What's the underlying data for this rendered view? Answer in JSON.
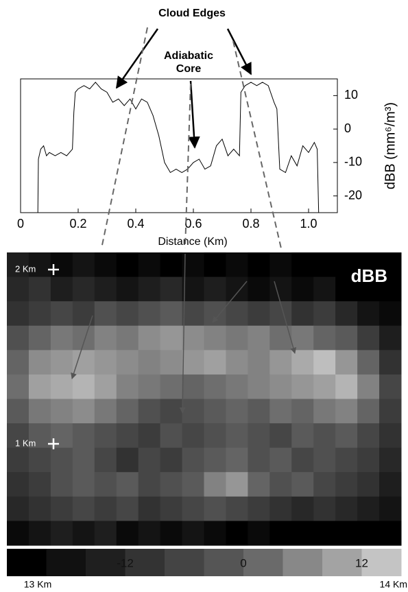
{
  "chart_data": [
    {
      "type": "line",
      "annotations": [
        "Cloud Edges",
        "Adiabatic Core"
      ],
      "xlabel": "Distance (Km)",
      "ylabel": "dBB (mm⁶/m³)",
      "x": [
        0.06,
        0.062,
        0.07,
        0.08,
        0.09,
        0.1,
        0.12,
        0.14,
        0.16,
        0.18,
        0.185,
        0.19,
        0.2,
        0.22,
        0.24,
        0.26,
        0.28,
        0.3,
        0.32,
        0.34,
        0.36,
        0.38,
        0.4,
        0.42,
        0.44,
        0.46,
        0.48,
        0.5,
        0.52,
        0.54,
        0.56,
        0.58,
        0.6,
        0.62,
        0.64,
        0.66,
        0.68,
        0.7,
        0.72,
        0.74,
        0.76,
        0.765,
        0.78,
        0.8,
        0.82,
        0.84,
        0.86,
        0.88,
        0.89,
        0.9,
        0.92,
        0.94,
        0.96,
        0.98,
        1.0,
        1.02,
        1.03,
        1.035
      ],
      "values": [
        -25,
        -9,
        -6,
        -5,
        -8,
        -7,
        -8,
        -7,
        -8,
        -6,
        5,
        11,
        12,
        13,
        12,
        14,
        12,
        11,
        8,
        9,
        7,
        9,
        6,
        9,
        8,
        4,
        -2,
        -10,
        -13,
        -12,
        -13,
        -12,
        -10,
        -9,
        -12,
        -11,
        -5,
        -3,
        -8,
        -6,
        -8,
        11,
        13,
        14,
        13,
        14,
        13,
        8,
        6,
        -12,
        -13,
        -8,
        -11,
        -5,
        -7,
        -4,
        -6,
        -25
      ],
      "color": "#000000",
      "xlim": [
        0,
        1.1
      ],
      "xticks": [
        0,
        0.2,
        0.4,
        0.6,
        0.8,
        {
          "value": 1,
          "label": "1.0"
        }
      ],
      "ylim": [
        -25,
        15
      ],
      "yticks": [
        -20,
        -10,
        0,
        10
      ]
    },
    {
      "type": "heatmap",
      "title": "dBB",
      "xlabels": [
        "13 Km",
        "14 Km"
      ],
      "ylabels": [
        "2 Km",
        "1 Km"
      ],
      "z": [
        [
          -18,
          -20,
          -22,
          -20,
          -22,
          -24,
          -22,
          -24,
          -22,
          -24,
          -22,
          -24,
          -22,
          -24,
          -24,
          -24,
          -24,
          -24
        ],
        [
          -16,
          -14,
          -18,
          -16,
          -18,
          -20,
          -18,
          -16,
          -20,
          -18,
          -20,
          -22,
          -20,
          -22,
          -20,
          -24,
          -24,
          -24
        ],
        [
          -14,
          -12,
          -10,
          -12,
          -8,
          -10,
          -8,
          -6,
          -10,
          -8,
          -10,
          -12,
          -10,
          -14,
          -12,
          -16,
          -20,
          -22
        ],
        [
          -8,
          -4,
          0,
          -2,
          2,
          0,
          4,
          6,
          4,
          2,
          0,
          2,
          -2,
          0,
          -4,
          -6,
          -12,
          -18
        ],
        [
          -4,
          4,
          6,
          8,
          6,
          4,
          2,
          4,
          6,
          8,
          4,
          2,
          6,
          10,
          14,
          6,
          -4,
          -14
        ],
        [
          -2,
          8,
          10,
          12,
          8,
          2,
          0,
          -2,
          -4,
          -2,
          0,
          2,
          4,
          6,
          8,
          12,
          2,
          -10
        ],
        [
          -6,
          0,
          2,
          4,
          0,
          -4,
          -8,
          -10,
          -8,
          -6,
          -4,
          -6,
          -2,
          -4,
          0,
          2,
          -4,
          -12
        ],
        [
          -10,
          -6,
          -4,
          -6,
          -8,
          -10,
          -12,
          -8,
          -10,
          -8,
          -6,
          -8,
          -10,
          -6,
          -8,
          -6,
          -10,
          -14
        ],
        [
          -12,
          -10,
          -8,
          -6,
          -10,
          -14,
          -10,
          -12,
          -8,
          -6,
          -4,
          -8,
          -6,
          -10,
          -8,
          -10,
          -12,
          -16
        ],
        [
          -14,
          -12,
          -8,
          -6,
          -8,
          -6,
          -10,
          -8,
          -6,
          2,
          6,
          -4,
          -8,
          -6,
          -10,
          -12,
          -14,
          -18
        ],
        [
          -16,
          -14,
          -12,
          -10,
          -12,
          -10,
          -14,
          -12,
          -10,
          -8,
          -10,
          -12,
          -14,
          -16,
          -14,
          -16,
          -18,
          -20
        ],
        [
          -22,
          -20,
          -18,
          -20,
          -18,
          -22,
          -20,
          -22,
          -20,
          -22,
          -24,
          -22,
          -24,
          -24,
          -24,
          -24,
          -24,
          -24
        ]
      ],
      "zlim": [
        -24,
        16
      ],
      "zticks": [
        -12,
        0,
        12
      ],
      "colors": [
        "#000000",
        "#111111",
        "#1f1f1f",
        "#333333",
        "#444444",
        "#555555",
        "#6a6a6a",
        "#888888",
        "#a3a3a3",
        "#c4c4c4"
      ]
    }
  ]
}
